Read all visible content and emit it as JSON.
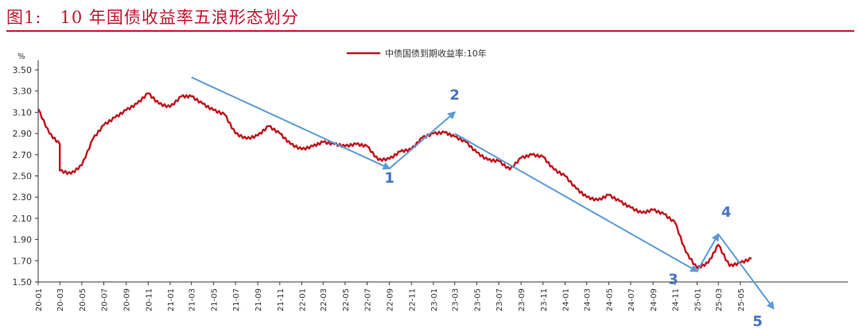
{
  "figure_title": "图1:   10 年国债收益率五浪形态划分",
  "colors": {
    "title": "#c0152f",
    "series": "#c0121c",
    "arrow": "#5b9bd5",
    "wave_label": "#4472c4",
    "axis": "#333333"
  },
  "chart_data": {
    "type": "line",
    "ylabel": "%",
    "ylim": [
      1.5,
      3.5
    ],
    "yticks": [
      "1.50",
      "1.70",
      "1.90",
      "2.10",
      "2.30",
      "2.50",
      "2.70",
      "2.90",
      "3.10",
      "3.30",
      "3.50"
    ],
    "xticks": [
      "20-01",
      "20-03",
      "20-05",
      "20-07",
      "20-09",
      "20-11",
      "21-01",
      "21-03",
      "21-05",
      "21-07",
      "21-09",
      "21-11",
      "22-01",
      "22-03",
      "22-05",
      "22-07",
      "22-09",
      "22-11",
      "23-01",
      "23-03",
      "23-05",
      "23-07",
      "23-09",
      "23-11",
      "24-01",
      "24-03",
      "24-05",
      "24-07",
      "24-09",
      "24-11",
      "25-01",
      "25-03",
      "25-05"
    ],
    "legend": "top-center",
    "series": [
      {
        "name": "中债国债到期收益率:10年",
        "points": [
          [
            "2020-01",
            3.13
          ],
          [
            "2020-02",
            2.9
          ],
          [
            "2020-03",
            2.8
          ],
          [
            "2020-03",
            2.55
          ],
          [
            "2020-04",
            2.52
          ],
          [
            "2020-05",
            2.6
          ],
          [
            "2020-06",
            2.85
          ],
          [
            "2020-07",
            2.98
          ],
          [
            "2020-08",
            3.05
          ],
          [
            "2020-09",
            3.12
          ],
          [
            "2020-10",
            3.18
          ],
          [
            "2020-11",
            3.28
          ],
          [
            "2020-12",
            3.18
          ],
          [
            "2021-01",
            3.15
          ],
          [
            "2021-02",
            3.25
          ],
          [
            "2021-03",
            3.25
          ],
          [
            "2021-04",
            3.18
          ],
          [
            "2021-05",
            3.12
          ],
          [
            "2021-06",
            3.08
          ],
          [
            "2021-07",
            2.9
          ],
          [
            "2021-08",
            2.85
          ],
          [
            "2021-09",
            2.88
          ],
          [
            "2021-10",
            2.97
          ],
          [
            "2021-11",
            2.9
          ],
          [
            "2021-12",
            2.8
          ],
          [
            "2022-01",
            2.75
          ],
          [
            "2022-02",
            2.78
          ],
          [
            "2022-03",
            2.82
          ],
          [
            "2022-04",
            2.8
          ],
          [
            "2022-05",
            2.78
          ],
          [
            "2022-06",
            2.8
          ],
          [
            "2022-07",
            2.78
          ],
          [
            "2022-08",
            2.65
          ],
          [
            "2022-09",
            2.66
          ],
          [
            "2022-10",
            2.73
          ],
          [
            "2022-11",
            2.75
          ],
          [
            "2022-12",
            2.86
          ],
          [
            "2023-01",
            2.9
          ],
          [
            "2023-02",
            2.91
          ],
          [
            "2023-03",
            2.87
          ],
          [
            "2023-04",
            2.82
          ],
          [
            "2023-05",
            2.72
          ],
          [
            "2023-06",
            2.65
          ],
          [
            "2023-07",
            2.64
          ],
          [
            "2023-08",
            2.56
          ],
          [
            "2023-09",
            2.67
          ],
          [
            "2023-10",
            2.7
          ],
          [
            "2023-11",
            2.68
          ],
          [
            "2023-12",
            2.56
          ],
          [
            "2024-01",
            2.5
          ],
          [
            "2024-02",
            2.38
          ],
          [
            "2024-03",
            2.3
          ],
          [
            "2024-04",
            2.27
          ],
          [
            "2024-05",
            2.32
          ],
          [
            "2024-06",
            2.26
          ],
          [
            "2024-07",
            2.2
          ],
          [
            "2024-08",
            2.15
          ],
          [
            "2024-09",
            2.18
          ],
          [
            "2024-10",
            2.14
          ],
          [
            "2024-11",
            2.06
          ],
          [
            "2024-12",
            1.78
          ],
          [
            "2025-01",
            1.63
          ],
          [
            "2025-02",
            1.68
          ],
          [
            "2025-03",
            1.85
          ],
          [
            "2025-04",
            1.65
          ],
          [
            "2025-05",
            1.68
          ],
          [
            "2025-06",
            1.72
          ]
        ]
      }
    ],
    "annotations": [
      {
        "label": "1",
        "from": [
          "2021-03",
          3.43
        ],
        "to": [
          "2022-09",
          2.57
        ]
      },
      {
        "label": "2",
        "from": [
          "2022-09",
          2.57
        ],
        "to": [
          "2023-03",
          3.1
        ]
      },
      {
        "label": "3",
        "from": [
          "2023-03",
          2.9
        ],
        "to": [
          "2025-01",
          1.6
        ]
      },
      {
        "label": "4",
        "from": [
          "2025-01",
          1.6
        ],
        "to": [
          "2025-03",
          1.95
        ]
      },
      {
        "label": "5",
        "from": [
          "2025-03",
          1.95
        ],
        "to": [
          "2025-08",
          1.25
        ]
      }
    ]
  }
}
